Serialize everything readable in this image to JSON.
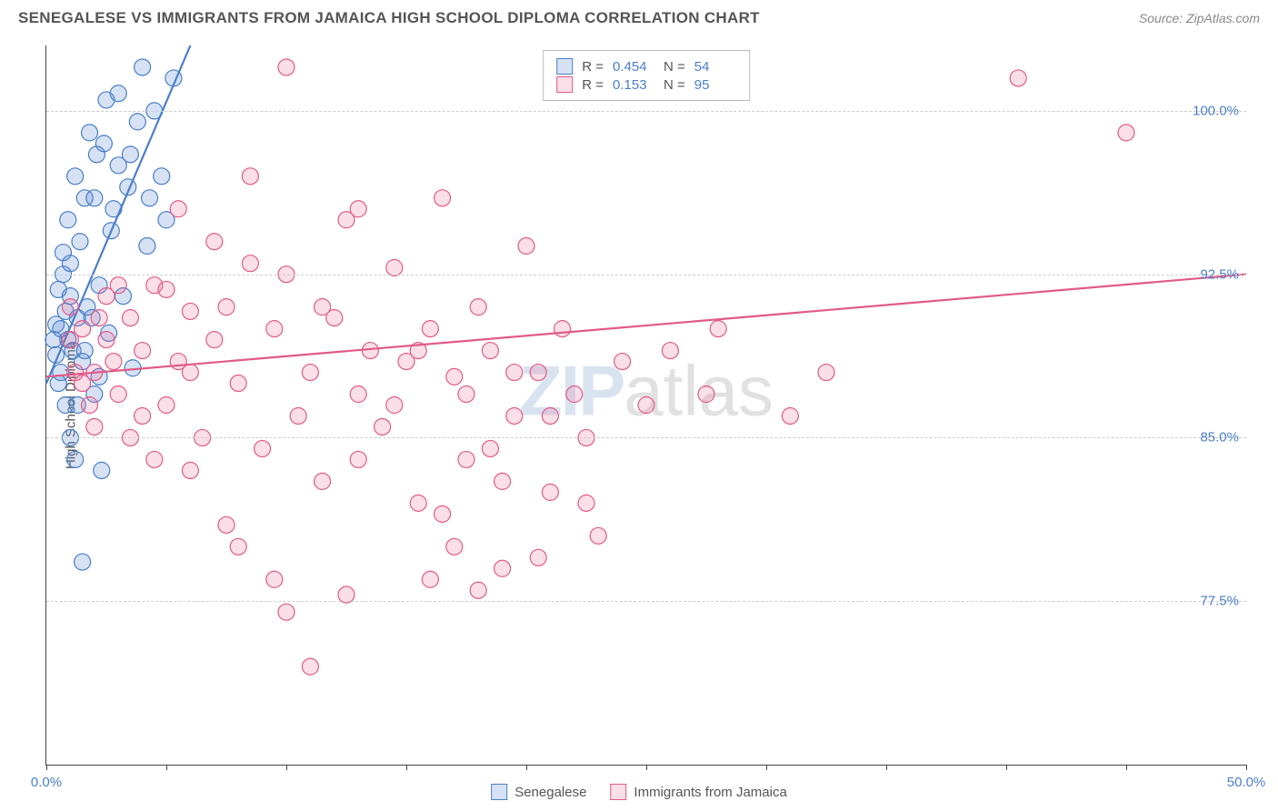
{
  "header": {
    "title": "SENEGALESE VS IMMIGRANTS FROM JAMAICA HIGH SCHOOL DIPLOMA CORRELATION CHART",
    "source_label": "Source: ZipAtlas.com"
  },
  "chart": {
    "type": "scatter",
    "ylabel": "High School Diploma",
    "xlim": [
      0,
      50
    ],
    "ylim": [
      70,
      103
    ],
    "x_ticks": [
      0,
      5,
      10,
      15,
      20,
      25,
      30,
      35,
      40,
      45,
      50
    ],
    "x_tick_labels": {
      "0": "0.0%",
      "50": "50.0%"
    },
    "y_gridlines": [
      77.5,
      85.0,
      92.5,
      100.0
    ],
    "y_tick_labels": [
      "77.5%",
      "85.0%",
      "92.5%",
      "100.0%"
    ],
    "background_color": "#ffffff",
    "grid_color": "#cccccc",
    "axis_color": "#444444",
    "marker_radius": 9,
    "marker_fill_opacity": 0.25,
    "marker_stroke_width": 1.2,
    "line_width": 2.2,
    "series": [
      {
        "name": "Senegalese",
        "color": "#4a7ec9",
        "fill": "rgba(90,140,210,0.25)",
        "r": "0.454",
        "n": "54",
        "trend": {
          "x1": 0,
          "y1": 87.5,
          "x2": 6,
          "y2": 103
        },
        "points": [
          [
            0.3,
            89.5
          ],
          [
            0.4,
            90.2
          ],
          [
            0.5,
            91.8
          ],
          [
            0.6,
            88.0
          ],
          [
            0.7,
            92.5
          ],
          [
            0.8,
            86.5
          ],
          [
            0.9,
            95.0
          ],
          [
            1.0,
            93.0
          ],
          [
            1.1,
            89.0
          ],
          [
            1.2,
            97.0
          ],
          [
            1.3,
            90.5
          ],
          [
            1.4,
            94.0
          ],
          [
            1.5,
            88.5
          ],
          [
            1.6,
            96.0
          ],
          [
            1.7,
            91.0
          ],
          [
            1.8,
            99.0
          ],
          [
            2.0,
            87.0
          ],
          [
            2.1,
            98.0
          ],
          [
            2.2,
            92.0
          ],
          [
            2.3,
            83.5
          ],
          [
            2.5,
            100.5
          ],
          [
            2.6,
            89.8
          ],
          [
            2.8,
            95.5
          ],
          [
            3.0,
            97.5
          ],
          [
            3.2,
            91.5
          ],
          [
            3.4,
            96.5
          ],
          [
            3.6,
            88.2
          ],
          [
            3.8,
            99.5
          ],
          [
            4.0,
            102.0
          ],
          [
            4.2,
            93.8
          ],
          [
            4.5,
            100.0
          ],
          [
            4.8,
            97.0
          ],
          [
            5.0,
            95.0
          ],
          [
            5.3,
            101.5
          ],
          [
            1.0,
            85.0
          ],
          [
            1.2,
            84.0
          ],
          [
            1.5,
            79.3
          ],
          [
            0.5,
            87.5
          ],
          [
            0.8,
            90.8
          ],
          [
            1.0,
            91.5
          ],
          [
            1.3,
            86.5
          ],
          [
            1.6,
            89.0
          ],
          [
            2.0,
            96.0
          ],
          [
            2.4,
            98.5
          ],
          [
            0.4,
            88.8
          ],
          [
            0.6,
            90.0
          ],
          [
            0.7,
            93.5
          ],
          [
            0.9,
            89.5
          ],
          [
            3.0,
            100.8
          ],
          [
            3.5,
            98.0
          ],
          [
            2.7,
            94.5
          ],
          [
            1.9,
            90.5
          ],
          [
            2.2,
            87.8
          ],
          [
            4.3,
            96.0
          ]
        ]
      },
      {
        "name": "Immigrants from Jamaica",
        "color": "#e15a88",
        "fill": "rgba(230,110,150,0.22)",
        "r": "0.153",
        "n": "95",
        "trend": {
          "x1": 0,
          "y1": 87.8,
          "x2": 50,
          "y2": 92.5
        },
        "points": [
          [
            1.0,
            89.5
          ],
          [
            1.5,
            90.0
          ],
          [
            2.0,
            88.0
          ],
          [
            2.5,
            91.5
          ],
          [
            3.0,
            87.0
          ],
          [
            3.5,
            90.5
          ],
          [
            4.0,
            89.0
          ],
          [
            4.5,
            92.0
          ],
          [
            5.0,
            86.5
          ],
          [
            5.5,
            88.5
          ],
          [
            6.0,
            90.8
          ],
          [
            6.5,
            85.0
          ],
          [
            7.0,
            89.5
          ],
          [
            7.5,
            91.0
          ],
          [
            8.0,
            87.5
          ],
          [
            8.5,
            93.0
          ],
          [
            9.0,
            84.5
          ],
          [
            9.5,
            90.0
          ],
          [
            10.0,
            102.0
          ],
          [
            10.5,
            86.0
          ],
          [
            11.0,
            88.0
          ],
          [
            11.5,
            83.0
          ],
          [
            12.0,
            90.5
          ],
          [
            12.5,
            95.0
          ],
          [
            13.0,
            87.0
          ],
          [
            13.5,
            89.0
          ],
          [
            14.0,
            85.5
          ],
          [
            14.5,
            92.8
          ],
          [
            15.0,
            88.5
          ],
          [
            15.5,
            82.0
          ],
          [
            16.0,
            90.0
          ],
          [
            16.5,
            96.0
          ],
          [
            17.0,
            87.8
          ],
          [
            17.5,
            84.0
          ],
          [
            18.0,
            91.0
          ],
          [
            18.5,
            89.0
          ],
          [
            19.0,
            79.0
          ],
          [
            19.5,
            86.0
          ],
          [
            20.0,
            93.8
          ],
          [
            20.5,
            88.0
          ],
          [
            21.0,
            82.5
          ],
          [
            21.5,
            90.0
          ],
          [
            22.0,
            87.0
          ],
          [
            22.5,
            85.0
          ],
          [
            23.0,
            80.5
          ],
          [
            24.0,
            88.5
          ],
          [
            10.0,
            77.0
          ],
          [
            11.0,
            74.5
          ],
          [
            12.5,
            77.8
          ],
          [
            8.0,
            80.0
          ],
          [
            9.5,
            78.5
          ],
          [
            6.0,
            83.5
          ],
          [
            7.5,
            81.0
          ],
          [
            5.0,
            91.8
          ],
          [
            4.0,
            86.0
          ],
          [
            3.0,
            92.0
          ],
          [
            2.5,
            89.5
          ],
          [
            2.0,
            85.5
          ],
          [
            1.5,
            87.5
          ],
          [
            1.0,
            91.0
          ],
          [
            13.0,
            84.0
          ],
          [
            14.5,
            86.5
          ],
          [
            15.5,
            89.0
          ],
          [
            16.5,
            81.5
          ],
          [
            17.5,
            87.0
          ],
          [
            18.5,
            84.5
          ],
          [
            19.5,
            88.0
          ],
          [
            21.0,
            86.0
          ],
          [
            22.5,
            82.0
          ],
          [
            16.0,
            78.5
          ],
          [
            17.0,
            80.0
          ],
          [
            18.0,
            78.0
          ],
          [
            19.0,
            83.0
          ],
          [
            20.5,
            79.5
          ],
          [
            25.0,
            86.5
          ],
          [
            26.0,
            89.0
          ],
          [
            27.5,
            87.0
          ],
          [
            31.0,
            86.0
          ],
          [
            32.5,
            88.0
          ],
          [
            40.5,
            101.5
          ],
          [
            45.0,
            99.0
          ],
          [
            28.0,
            90.0
          ],
          [
            5.5,
            95.5
          ],
          [
            7.0,
            94.0
          ],
          [
            8.5,
            97.0
          ],
          [
            10.0,
            92.5
          ],
          [
            11.5,
            91.0
          ],
          [
            13.0,
            95.5
          ],
          [
            4.5,
            84.0
          ],
          [
            6.0,
            88.0
          ],
          [
            3.5,
            85.0
          ],
          [
            2.8,
            88.5
          ],
          [
            2.2,
            90.5
          ],
          [
            1.8,
            86.5
          ],
          [
            1.2,
            88.0
          ]
        ]
      }
    ]
  },
  "watermark": {
    "part1": "ZIP",
    "part2": "atlas"
  },
  "bottom_legend": {
    "item1": "Senegalese",
    "item2": "Immigrants from Jamaica"
  }
}
